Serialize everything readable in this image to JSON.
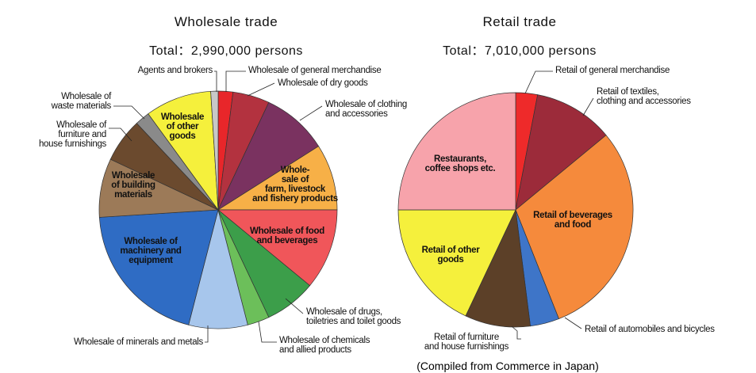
{
  "chart_data": [
    {
      "type": "pie",
      "title": "Wholesale trade",
      "subtitle": "Total：2,990,000 persons",
      "categories": [
        "Wholesale of general merchandise",
        "Wholesale of dry goods",
        "Wholesale of clothing\nand accessories",
        "Whole-\nsale of\nfarm, livestock\nand fishery products",
        "Wholesale of food\nand beverages",
        "Wholesale of drugs,\ntoiletries and toilet goods",
        "Wholesale of chemicals\nand allied products",
        "Wholesale of  minerals and metals",
        "Wholesale of\nmachinery and\nequipment",
        "Wholesale\nof building\nmaterials",
        "Wholesale of\nfurniture and\nhouse furnishings",
        "Wholesale of\nwaste materials",
        "Wholesale\nof other\ngoods",
        "Agents and brokers"
      ],
      "values": [
        2,
        5,
        9,
        9,
        11,
        7,
        3,
        8,
        20,
        8,
        6,
        2,
        9,
        1
      ],
      "colors": [
        "#e8262a",
        "#b3323f",
        "#7a3260",
        "#f7b047",
        "#f0565a",
        "#3c9e4a",
        "#6cbf5a",
        "#a7c6ec",
        "#2f6cc4",
        "#9c7a58",
        "#6b4a2e",
        "#8a8a8a",
        "#f5f03c",
        "#c8c8c8"
      ]
    },
    {
      "type": "pie",
      "title": "Retail trade",
      "subtitle": "Total：7,010,000 persons",
      "categories": [
        "Retail of general merchandise",
        "Retail of textiles,\nclothing and accessories",
        "Retail of beverages\nand food",
        "Retail of automobiles and bicycles",
        "Retail of furniture\nand house furnishings",
        "Retail of other\ngoods",
        "Restaurants,\ncoffee shops etc."
      ],
      "values": [
        3,
        11,
        30,
        4,
        9,
        18,
        25
      ],
      "colors": [
        "#ee2a2a",
        "#9c2b3a",
        "#f58a3c",
        "#3e75c8",
        "#5c4028",
        "#f5f03c",
        "#f7a3ab"
      ]
    }
  ],
  "source": "(Compiled from Commerce in Japan)"
}
